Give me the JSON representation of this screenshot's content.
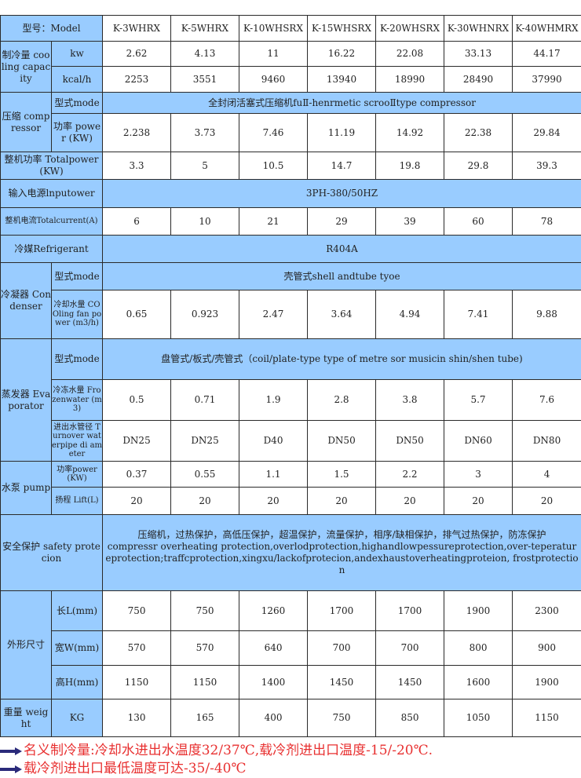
{
  "header": {
    "label": "型号：Model",
    "models": [
      "K-3WHRX",
      "K-5WHRX",
      "K-10WHSRX",
      "K-15WHSRX",
      "K-20WHSRX",
      "K-30WHNRX",
      "K-40WHMRX"
    ]
  },
  "cooling": {
    "label": "制冷量 cooling capacity",
    "kw_label": "kw",
    "kw": [
      "2.62",
      "4.13",
      "11",
      "16.22",
      "22.08",
      "33.13",
      "44.17"
    ],
    "kcal_label": "kcal/h",
    "kcal": [
      "2253",
      "3551",
      "9460",
      "13940",
      "18990",
      "28490",
      "37990"
    ]
  },
  "compressor": {
    "label": "压缩 comp ressor",
    "mode_label": "型式mode",
    "mode": "全封闭活塞式压缩机fuⅡ-henrmetic scrooⅡtype compressor",
    "power_label": "功率 power (KW)",
    "power": [
      "2.238",
      "3.73",
      "7.46",
      "11.19",
      "14.92",
      "22.38",
      "29.84"
    ]
  },
  "total_power": {
    "label": "整机功率 Totalpower (KW)",
    "values": [
      "3.3",
      "5",
      "10.5",
      "14.7",
      "19.8",
      "29.8",
      "39.3"
    ]
  },
  "input_power": {
    "label": "输入电源lnputower",
    "value": "3PH-380/50HZ"
  },
  "total_current": {
    "label": "整机电流Totalcurrent(A)",
    "values": [
      "6",
      "10",
      "21",
      "29",
      "39",
      "60",
      "78"
    ]
  },
  "refrigerant": {
    "label": "冷媒Refrigerant",
    "value": "R404A"
  },
  "condenser": {
    "label": "冷凝器 Condenser",
    "mode_label": "型式mode",
    "mode": "壳管式shell andtube tyoe",
    "water_label": "冷却水量 COOling fan power (m3/h)",
    "water": [
      "0.65",
      "0.923",
      "2.47",
      "3.64",
      "4.94",
      "7.41",
      "9.88"
    ]
  },
  "evaporator": {
    "label": "蒸发器 Evaporator",
    "mode_label": "型式mode",
    "mode": "盘管式/板式/壳管式（coil/plate-type type of metre sor musicin shin/shen tube)",
    "frozen_label": "冷冻水量 Frozenwater (m3)",
    "frozen": [
      "0.5",
      "0.71",
      "1.9",
      "2.8",
      "3.8",
      "5.7",
      "7.6"
    ],
    "pipe_label": "进出水管径 Turnover waterpipe di ameter",
    "pipe": [
      "DN25",
      "DN25",
      "D40",
      "DN50",
      "DN50",
      "DN60",
      "DN80"
    ]
  },
  "pump": {
    "label": "水泵 pump",
    "power_label": "功率power (KW)",
    "power": [
      "0.37",
      "0.55",
      "1.1",
      "1.5",
      "2.2",
      "3",
      "4"
    ],
    "lift_label": "扬程 Lift(L)",
    "lift": [
      "20",
      "20",
      "20",
      "20",
      "20",
      "20",
      "20"
    ]
  },
  "safety": {
    "label": "安全保护 safety protecion",
    "value_cn": "压缩机，过热保护，高低压保护，超温保护，流量保护，相序/缺相保护，排气过热保护，防冻保护",
    "value_en": "compressr overheating protection,overlodprotection,highandlowpessureprotection,over-teperatureprotection;traffcprotection,xingxu/lackofprotecion,andexhaustoverheatingproteion,     frostprotection"
  },
  "dimensions": {
    "label": "外形尺寸",
    "length_label": "长L(mm)",
    "length": [
      "750",
      "750",
      "1260",
      "1700",
      "1700",
      "1900",
      "2300"
    ],
    "width_label": "宽W(mm)",
    "width": [
      "570",
      "570",
      "640",
      "700",
      "700",
      "800",
      "900"
    ],
    "height_label": "高H(mm)",
    "height": [
      "1150",
      "1150",
      "1400",
      "1450",
      "1450",
      "1600",
      "1900"
    ]
  },
  "weight": {
    "label": "重量 weight",
    "unit": "KG",
    "values": [
      "130",
      "165",
      "400",
      "750",
      "850",
      "1050",
      "1150"
    ]
  },
  "notes": [
    "名义制冷量:冷却水进出水温度32/37℃,载冷剂进出口温度-15/-20℃.",
    "载冷剂进出口最低温度可达-35/-40℃"
  ],
  "colors": {
    "header_bg": "#99ccff",
    "note_text": "#e83030",
    "arrow": "#2a2a7a"
  }
}
